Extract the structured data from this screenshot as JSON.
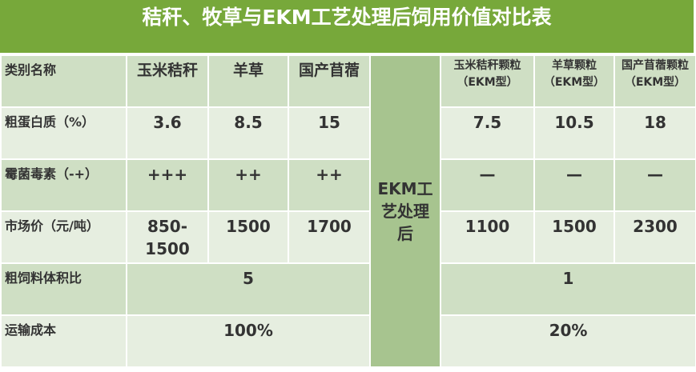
{
  "title": "秸秆、牧草与EKM工艺处理后饲用价值对比表",
  "process_label": "EKM工艺处理后",
  "table": {
    "header": [
      "类别名称",
      "玉米秸秆",
      "羊草",
      "国产苜蓿",
      "玉米秸秆颗粒（EKM型）",
      "羊草颗粒（EKM型）",
      "国产苜蓿颗粒（EKM型）"
    ],
    "rows": [
      [
        "粗蛋白质（%）",
        "3.6",
        "8.5",
        "15",
        "7.5",
        "10.5",
        "18"
      ],
      [
        "霉菌毒素（-+）",
        "+++",
        "++",
        "++",
        "—",
        "—",
        "—"
      ],
      [
        "市场价（元/吨）",
        "850-1500",
        "1500",
        "1700",
        "1100",
        "1500",
        "2300"
      ],
      [
        "粗饲料体积比",
        "5",
        "1"
      ],
      [
        "运输成本",
        "100%",
        "20%"
      ]
    ]
  }
}
